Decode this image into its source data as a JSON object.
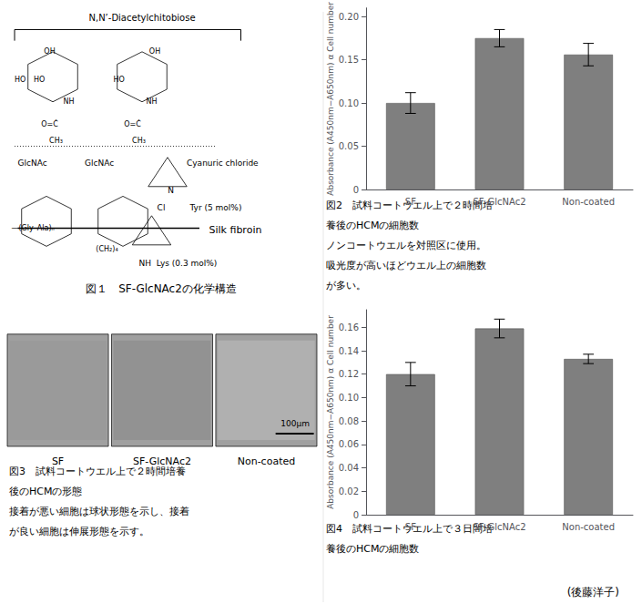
{
  "chart_data": [
    {
      "type": "bar",
      "categories": [
        "SF",
        "SF-GlcNAc2",
        "Non-coated"
      ],
      "values": [
        0.1,
        0.175,
        0.156
      ],
      "errors": [
        0.012,
        0.01,
        0.013
      ],
      "ylabel": "Absorbance (A450nm−A650nm) α Cell number",
      "ylim": [
        0,
        0.21
      ],
      "yticks": [
        0,
        0.05,
        {
          "value": 0.1,
          "label": "0.10"
        },
        0.15,
        {
          "value": 0.2,
          "label": "0.20"
        }
      ],
      "color": "#7f7f7f",
      "grid": false,
      "annotations": [
        "図2　試料コートウエル上で２時間培",
        "養後のHCMの細胞数",
        "ノンコートウエルを対照区に使用。",
        "吸光度が高いほどウエル上の細胞数",
        "が多い。"
      ]
    },
    {
      "type": "bar",
      "categories": [
        "SF",
        "SF-GlcNAc2",
        "Non-coated"
      ],
      "values": [
        0.12,
        0.159,
        0.133
      ],
      "errors": [
        0.01,
        0.008,
        0.004
      ],
      "ylabel": "Absorbance (A450nm−A650nm) α Cell number",
      "ylim": [
        0,
        0.175
      ],
      "yticks": [
        0,
        0.02,
        0.04,
        0.06,
        0.08,
        {
          "value": 0.1,
          "label": "0.10"
        },
        0.12,
        0.14,
        0.16
      ],
      "color": "#7f7f7f",
      "grid": false,
      "annotations": [
        "図4　試料コートウエル上で３日間培",
        "養後のHCMの細胞数"
      ]
    }
  ],
  "annotations": {
    "fig1_structure": [
      "N,N’-Diacetylchitobiose",
      "OH",
      "OH",
      "HO",
      "HO",
      "HO",
      "NH",
      "NH",
      "O=Ċ",
      "O=Ċ",
      "CH₃",
      "CH₃",
      "GlcNAc",
      "GlcNAc",
      "Cyanuric chloride",
      "N",
      "Cl",
      "Tyr (5 mol%)",
      "Silk fibroin",
      "(CH₂)₄",
      "NH  Lys (0.3 mol%)",
      "—(Gly–Ala)ₙ"
    ],
    "fig1_caption": "図１　SF-GlcNAc2の化学構造",
    "fig3_sublabels": [
      "SF",
      "SF-GlcNAc2",
      "Non-coated"
    ],
    "scale_bar": "100μm",
    "fig3_caption": [
      "図3　試料コートウエル上で２時間培養",
      "後のHCMの形態",
      "接着が悪い細胞は球状形態を示し、接着",
      "が良い細胞は伸展形態を示す。"
    ],
    "author": "(後藤洋子)"
  }
}
